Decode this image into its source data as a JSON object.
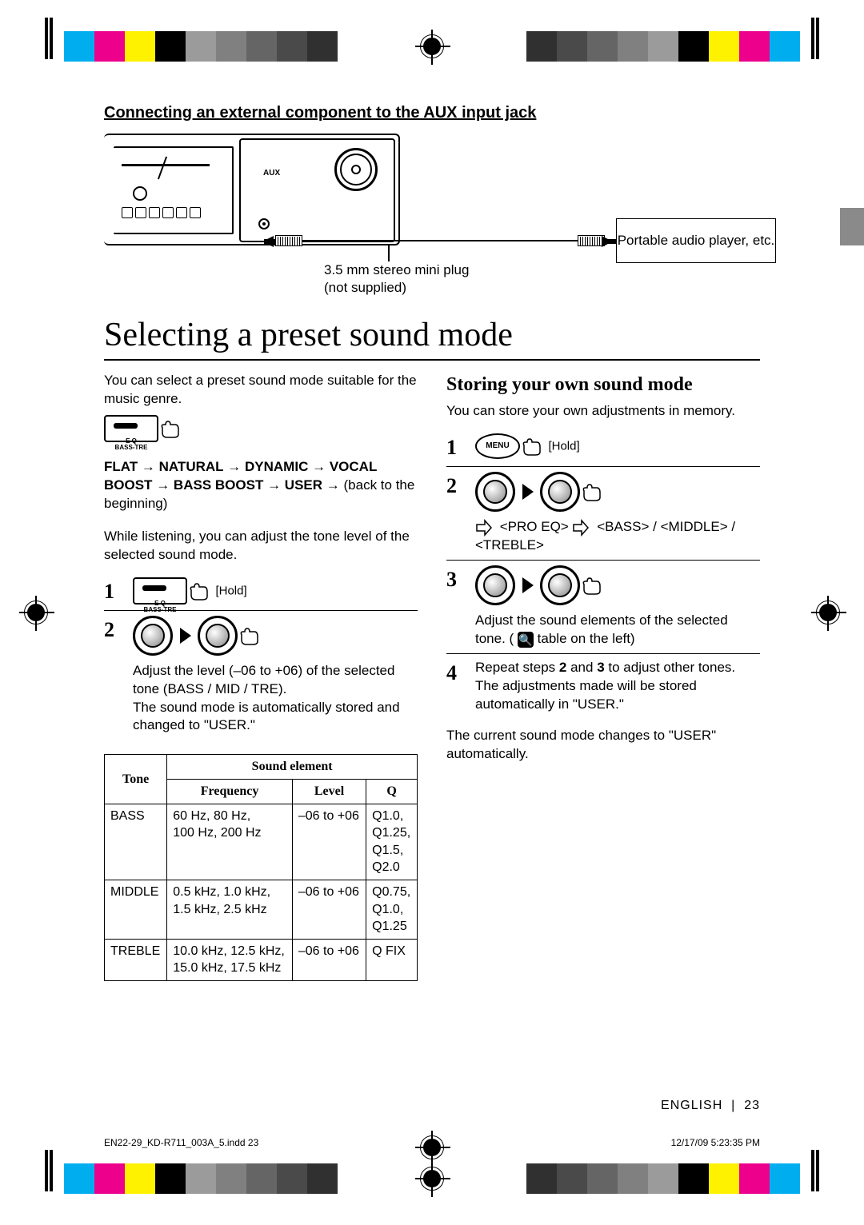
{
  "reg_colors_left": [
    "#00aeef",
    "#ec008c",
    "#fff200",
    "#000000",
    "#9b9b9b",
    "#808080",
    "#656565",
    "#4a4a4a",
    "#303030"
  ],
  "reg_colors_right": [
    "#303030",
    "#4a4a4a",
    "#656565",
    "#808080",
    "#9b9b9b",
    "#000000",
    "#fff200",
    "#ec008c",
    "#00aeef"
  ],
  "section_heading": "Connecting an external component to the AUX input jack",
  "aux_label": "AUX",
  "player_label": "Portable audio player, etc.",
  "plug_note_l1": "3.5 mm stereo mini plug",
  "plug_note_l2": "(not supplied)",
  "title": "Selecting a preset sound mode",
  "left": {
    "intro": "You can select a preset sound mode suitable for the music genre.",
    "eq_label_top": "E Q",
    "eq_label_bot": "BASS-TRE",
    "seq_bold1": "FLAT",
    "seq_bold2": "NATURAL",
    "seq_bold3": "DYNAMIC",
    "seq_bold4": "VOCAL BOOST",
    "seq_bold5": "BASS BOOST",
    "seq_bold6": "USER",
    "seq_tail": "(back to the beginning)",
    "para2": "While listening, you can adjust the tone level of the selected sound mode.",
    "s1_hold": "[Hold]",
    "s2_l1": "Adjust the level (–06 to +06) of the selected tone (BASS / MID / TRE).",
    "s2_l2": "The sound mode is automatically stored and changed to \"USER.\""
  },
  "right": {
    "heading": "Storing your own sound mode",
    "intro": "You can store your own adjustments in memory.",
    "menu": "MENU",
    "s1_hold": "[Hold]",
    "s2_path": "<PRO EQ> ⇨ <BASS> / <MIDDLE> / <TREBLE>",
    "s3_l1": "Adjust the sound elements of the selected tone. (",
    "s3_l2": " table on the left)",
    "s4_l1_a": "Repeat steps ",
    "s4_l1_b": " and ",
    "s4_l1_c": " to adjust other tones.",
    "s4_l2": "The adjustments made will be stored automatically in \"USER.\"",
    "closing": "The current sound mode changes to \"USER\" automatically."
  },
  "table": {
    "h_tone": "Tone",
    "h_sound": "Sound element",
    "h_freq": "Frequency",
    "h_level": "Level",
    "h_q": "Q",
    "rows": [
      {
        "tone": "BASS",
        "freq": "60 Hz, 80 Hz,\n100 Hz, 200 Hz",
        "level": "–06 to +06",
        "q": "Q1.0, Q1.25, Q1.5, Q2.0"
      },
      {
        "tone": "MIDDLE",
        "freq": "0.5 kHz, 1.0 kHz,\n1.5 kHz, 2.5 kHz",
        "level": "–06 to +06",
        "q": "Q0.75, Q1.0, Q1.25"
      },
      {
        "tone": "TREBLE",
        "freq": "10.0 kHz, 12.5 kHz,\n15.0 kHz, 17.5 kHz",
        "level": "–06 to +06",
        "q": "Q FIX"
      }
    ]
  },
  "footer": {
    "lang": "ENGLISH",
    "page": "23",
    "file": "EN22-29_KD-R711_003A_5.indd   23",
    "ts": "12/17/09   5:23:35 PM"
  }
}
